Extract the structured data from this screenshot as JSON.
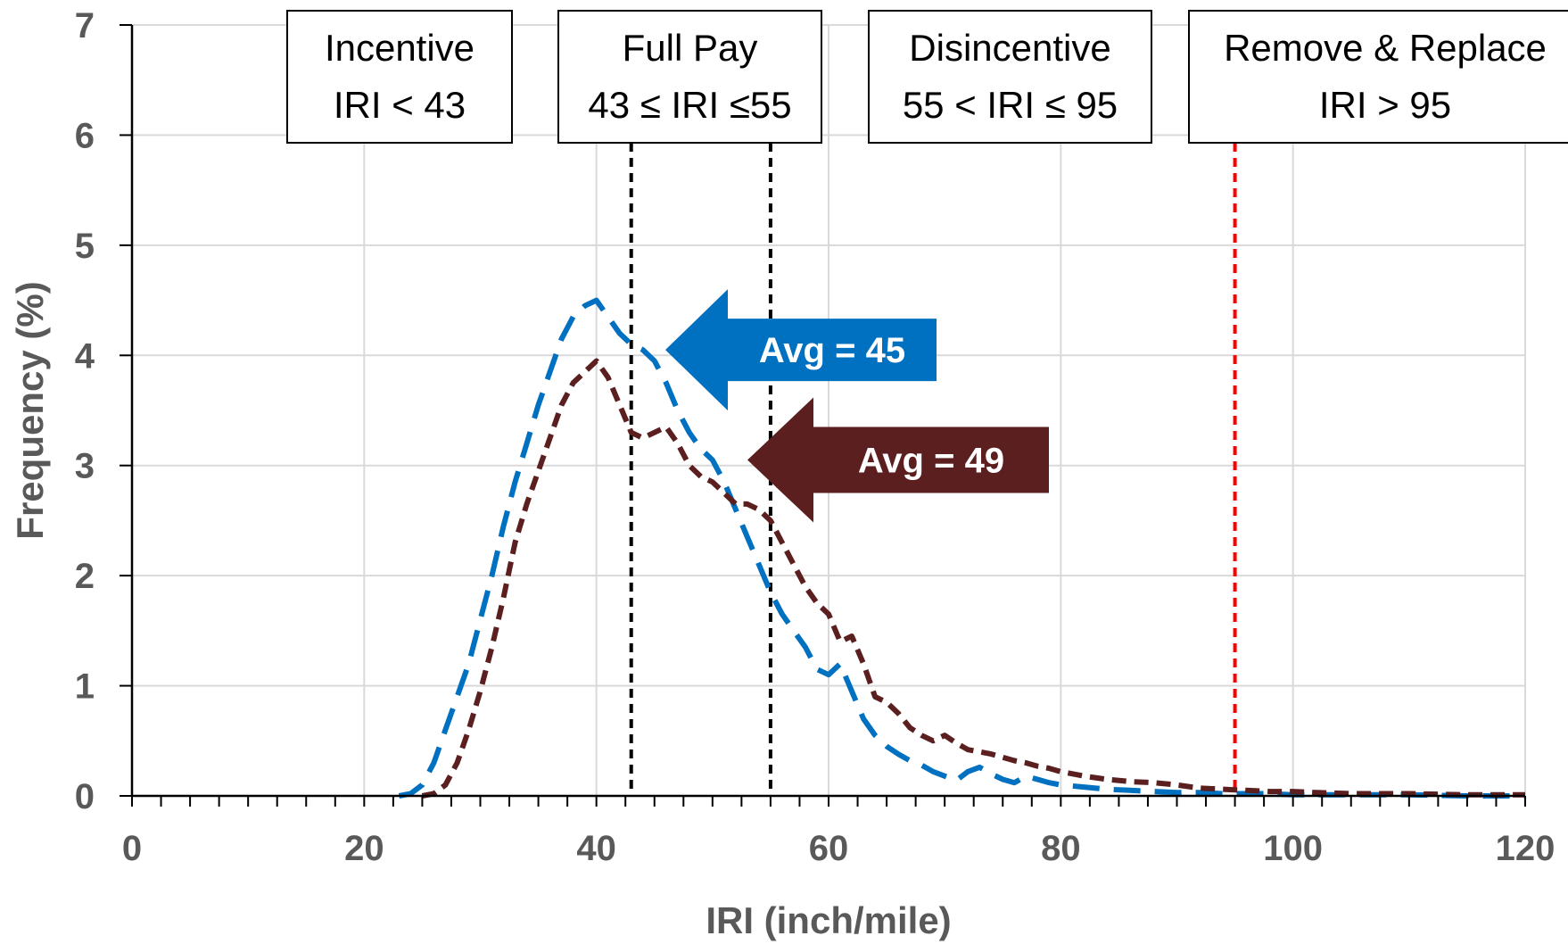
{
  "chart_data": {
    "type": "line",
    "xlabel": "IRI (inch/mile)",
    "ylabel": "Frequency (%)",
    "xlim": [
      0,
      120
    ],
    "ylim": [
      0,
      7
    ],
    "xticks": [
      "0",
      "20",
      "40",
      "60",
      "80",
      "100",
      "120"
    ],
    "yticks": [
      "0",
      "1",
      "2",
      "3",
      "4",
      "5",
      "6",
      "7"
    ],
    "grid": true,
    "series": [
      {
        "color": "#0070C0",
        "dash": "long-dash",
        "points": [
          [
            23,
            0
          ],
          [
            24,
            0.02
          ],
          [
            25,
            0.1
          ],
          [
            26,
            0.3
          ],
          [
            27,
            0.6
          ],
          [
            28,
            0.9
          ],
          [
            29,
            1.2
          ],
          [
            30,
            1.6
          ],
          [
            31,
            2.0
          ],
          [
            32,
            2.45
          ],
          [
            33,
            2.85
          ],
          [
            34,
            3.2
          ],
          [
            35,
            3.55
          ],
          [
            36,
            3.85
          ],
          [
            37,
            4.15
          ],
          [
            38,
            4.35
          ],
          [
            39,
            4.45
          ],
          [
            40,
            4.5
          ],
          [
            41,
            4.35
          ],
          [
            42,
            4.2
          ],
          [
            43,
            4.1
          ],
          [
            44,
            4.05
          ],
          [
            45,
            3.95
          ],
          [
            46,
            3.75
          ],
          [
            47,
            3.5
          ],
          [
            48,
            3.3
          ],
          [
            49,
            3.15
          ],
          [
            50,
            3.05
          ],
          [
            51,
            2.85
          ],
          [
            52,
            2.6
          ],
          [
            53,
            2.35
          ],
          [
            54,
            2.1
          ],
          [
            55,
            1.85
          ],
          [
            56,
            1.65
          ],
          [
            57,
            1.5
          ],
          [
            58,
            1.35
          ],
          [
            59,
            1.15
          ],
          [
            60,
            1.1
          ],
          [
            61,
            1.2
          ],
          [
            62,
            0.95
          ],
          [
            63,
            0.7
          ],
          [
            64,
            0.55
          ],
          [
            65,
            0.45
          ],
          [
            66,
            0.38
          ],
          [
            67,
            0.32
          ],
          [
            68,
            0.28
          ],
          [
            69,
            0.22
          ],
          [
            70,
            0.18
          ],
          [
            71,
            0.14
          ],
          [
            72,
            0.22
          ],
          [
            73,
            0.26
          ],
          [
            74,
            0.2
          ],
          [
            75,
            0.15
          ],
          [
            76,
            0.12
          ],
          [
            77,
            0.18
          ],
          [
            78,
            0.15
          ],
          [
            79,
            0.12
          ],
          [
            80,
            0.1
          ],
          [
            82,
            0.08
          ],
          [
            84,
            0.06
          ],
          [
            86,
            0.05
          ],
          [
            88,
            0.04
          ],
          [
            90,
            0.03
          ],
          [
            92,
            0.03
          ],
          [
            94,
            0.02
          ],
          [
            96,
            0.02
          ],
          [
            98,
            0.02
          ],
          [
            100,
            0.01
          ],
          [
            105,
            0.01
          ],
          [
            110,
            0.01
          ],
          [
            115,
            0
          ],
          [
            120,
            0
          ]
        ]
      },
      {
        "color": "#5C1F1F",
        "dash": "short-dash",
        "points": [
          [
            25,
            0
          ],
          [
            26,
            0.02
          ],
          [
            27,
            0.1
          ],
          [
            28,
            0.3
          ],
          [
            29,
            0.6
          ],
          [
            30,
            0.95
          ],
          [
            31,
            1.35
          ],
          [
            32,
            1.8
          ],
          [
            33,
            2.3
          ],
          [
            34,
            2.65
          ],
          [
            35,
            2.95
          ],
          [
            36,
            3.25
          ],
          [
            37,
            3.55
          ],
          [
            38,
            3.75
          ],
          [
            39,
            3.85
          ],
          [
            40,
            3.95
          ],
          [
            41,
            3.8
          ],
          [
            42,
            3.55
          ],
          [
            43,
            3.3
          ],
          [
            44,
            3.25
          ],
          [
            45,
            3.3
          ],
          [
            46,
            3.35
          ],
          [
            47,
            3.2
          ],
          [
            48,
            3.0
          ],
          [
            49,
            2.9
          ],
          [
            50,
            2.85
          ],
          [
            51,
            2.75
          ],
          [
            52,
            2.65
          ],
          [
            53,
            2.65
          ],
          [
            54,
            2.6
          ],
          [
            55,
            2.5
          ],
          [
            56,
            2.3
          ],
          [
            57,
            2.1
          ],
          [
            58,
            1.9
          ],
          [
            59,
            1.75
          ],
          [
            60,
            1.65
          ],
          [
            61,
            1.4
          ],
          [
            62,
            1.45
          ],
          [
            63,
            1.2
          ],
          [
            64,
            0.9
          ],
          [
            65,
            0.85
          ],
          [
            66,
            0.75
          ],
          [
            67,
            0.62
          ],
          [
            68,
            0.55
          ],
          [
            69,
            0.5
          ],
          [
            70,
            0.55
          ],
          [
            71,
            0.48
          ],
          [
            72,
            0.42
          ],
          [
            73,
            0.4
          ],
          [
            74,
            0.38
          ],
          [
            75,
            0.35
          ],
          [
            76,
            0.32
          ],
          [
            77,
            0.3
          ],
          [
            78,
            0.27
          ],
          [
            79,
            0.25
          ],
          [
            80,
            0.22
          ],
          [
            82,
            0.18
          ],
          [
            84,
            0.15
          ],
          [
            86,
            0.13
          ],
          [
            88,
            0.12
          ],
          [
            90,
            0.1
          ],
          [
            92,
            0.07
          ],
          [
            94,
            0.06
          ],
          [
            96,
            0.05
          ],
          [
            98,
            0.04
          ],
          [
            100,
            0.04
          ],
          [
            102,
            0.03
          ],
          [
            105,
            0.02
          ],
          [
            110,
            0.02
          ],
          [
            115,
            0.01
          ],
          [
            120,
            0.01
          ]
        ]
      }
    ],
    "threshold_lines": [
      {
        "x": 43,
        "color": "#000000"
      },
      {
        "x": 55,
        "color": "#000000"
      },
      {
        "x": 95,
        "color": "#FF0000"
      }
    ],
    "category_boxes": [
      {
        "line1": "Incentive",
        "line2": "IRI < 43"
      },
      {
        "line1": "Full Pay",
        "line2": "43 ≤ IRI ≤55"
      },
      {
        "line1": "Disincentive",
        "line2": "55 < IRI ≤ 95"
      },
      {
        "line1": "Remove & Replace",
        "line2": "IRI > 95"
      }
    ],
    "annotations": [
      {
        "text": "Avg = 45",
        "color": "#0070C0",
        "y": 4.05
      },
      {
        "text": "Avg = 49",
        "color": "#5C1F1F",
        "y": 3.05
      }
    ]
  }
}
